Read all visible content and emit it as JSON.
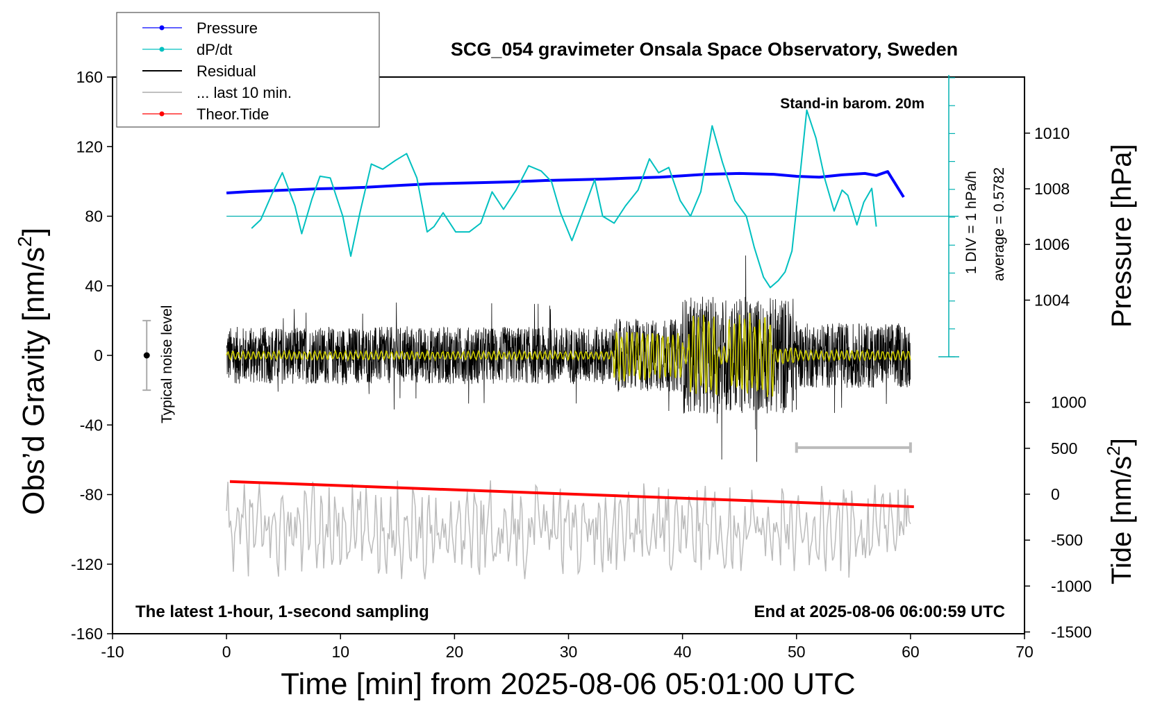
{
  "chart_data": {
    "type": "line",
    "title": "SCG_054 gravimeter Onsala Space Observatory, Sweden",
    "xlabel": "Time [min] from 2025-08-06 05:01:00 UTC",
    "ylabel_left_main": "Obs’d Gravity [nm/s",
    "ylabel_left_sup": "2",
    "ylabel_left_end": "]",
    "ylabel_right_pressure": "Pressure [hPa]",
    "ylabel_right_tide_main": "Tide [nm/s",
    "ylabel_right_tide_sup": "2",
    "ylabel_right_tide_end": "]",
    "xlim": [
      -10,
      70
    ],
    "ylim_gravity": [
      -160,
      160
    ],
    "ylim_pressure_ticks": [
      1004,
      1006,
      1008,
      1010
    ],
    "ylim_tide_ticks": [
      -1500,
      -1000,
      -500,
      0,
      500,
      1000
    ],
    "x_ticks": [
      -10,
      0,
      10,
      20,
      30,
      40,
      50,
      60,
      70
    ],
    "y_ticks": [
      -160,
      -120,
      -80,
      -40,
      0,
      40,
      80,
      120,
      160
    ],
    "annotations": {
      "barometer": "Stand-in barom. 20m",
      "div": "1 DIV = 1 hPa/h",
      "average": "average = 0.5782",
      "noise": "Typical noise level",
      "bottom_left": "The latest 1-hour, 1-second sampling",
      "bottom_right": "End at 2025-08-06 06:00:59 UTC"
    },
    "legend": [
      {
        "label": "Pressure",
        "color": "#0000ff",
        "marker": true
      },
      {
        "label": "dP/dt",
        "color": "#00c0c0",
        "marker": true
      },
      {
        "label": "Residual",
        "color": "#000000",
        "marker": false
      },
      {
        "label": "... last 10 min.",
        "color": "#c0c0c0",
        "marker": false
      },
      {
        "label": "Theor.Tide",
        "color": "#ff0000",
        "marker": true
      }
    ],
    "series": [
      {
        "name": "Pressure",
        "color": "#0000ff",
        "axis": "pressure",
        "x": [
          0,
          2,
          5,
          8,
          10,
          12,
          15,
          18,
          20,
          22,
          25,
          28,
          30,
          33,
          35,
          38,
          40,
          42,
          45,
          48,
          50,
          52,
          54,
          56,
          57,
          58,
          59.4
        ],
        "y": [
          1007.85,
          1007.9,
          1007.95,
          1008.0,
          1008.02,
          1008.05,
          1008.12,
          1008.18,
          1008.2,
          1008.22,
          1008.25,
          1008.3,
          1008.32,
          1008.35,
          1008.38,
          1008.42,
          1008.47,
          1008.52,
          1008.55,
          1008.52,
          1008.45,
          1008.42,
          1008.5,
          1008.55,
          1008.48,
          1008.62,
          1007.7
        ]
      },
      {
        "name": "dP/dt",
        "color": "#00c0c0",
        "axis": "gravity",
        "x": [
          2.2,
          3.0,
          4.0,
          4.9,
          6.0,
          6.6,
          7.5,
          8.2,
          9.1,
          10.2,
          10.9,
          11.7,
          12.7,
          13.7,
          14.8,
          15.8,
          16.7,
          17.6,
          18.2,
          19.0,
          20.1,
          21.3,
          22.3,
          23.3,
          24.3,
          25.4,
          26.5,
          27.6,
          28.5,
          29.3,
          30.3,
          31.4,
          32.3,
          33.0,
          34.0,
          35.0,
          36.1,
          37.1,
          37.9,
          38.8,
          39.8,
          40.7,
          41.6,
          42.6,
          43.5,
          44.6,
          45.6,
          46.3,
          47.1,
          47.7,
          48.4,
          49.0,
          49.6,
          50.3,
          50.9,
          51.7,
          52.5,
          53.3,
          54.0,
          54.5,
          55.3,
          55.9,
          56.6,
          57.0
        ],
        "y": [
          73,
          78,
          93,
          105,
          86,
          70,
          90,
          103,
          102,
          80,
          57,
          82,
          110,
          107,
          112,
          116,
          102,
          71,
          74,
          82,
          71,
          71,
          76,
          94,
          84,
          95,
          109,
          106,
          100,
          82,
          66,
          85,
          101,
          80,
          76,
          86,
          95,
          113,
          105,
          108,
          89,
          80,
          94,
          132,
          111,
          89,
          80,
          62,
          45,
          39,
          43,
          48,
          60,
          103,
          141,
          125,
          101,
          83,
          95,
          92,
          75,
          88,
          96,
          74
        ]
      },
      {
        "name": "Theor.Tide",
        "color": "#ff0000",
        "axis": "gravity",
        "x": [
          0.3,
          60.3
        ],
        "y": [
          -72.5,
          -87
        ]
      }
    ],
    "residual_envelope": [
      {
        "x": [
          0,
          34
        ],
        "amplitude": 22
      },
      {
        "x": [
          34,
          40
        ],
        "amplitude": 28
      },
      {
        "x": [
          40,
          50
        ],
        "amplitude": 45
      },
      {
        "x": [
          50,
          60
        ],
        "amplitude": 25
      }
    ],
    "noise_level_range": [
      -20,
      20
    ],
    "ten_min_bar_x": [
      50,
      60
    ]
  }
}
